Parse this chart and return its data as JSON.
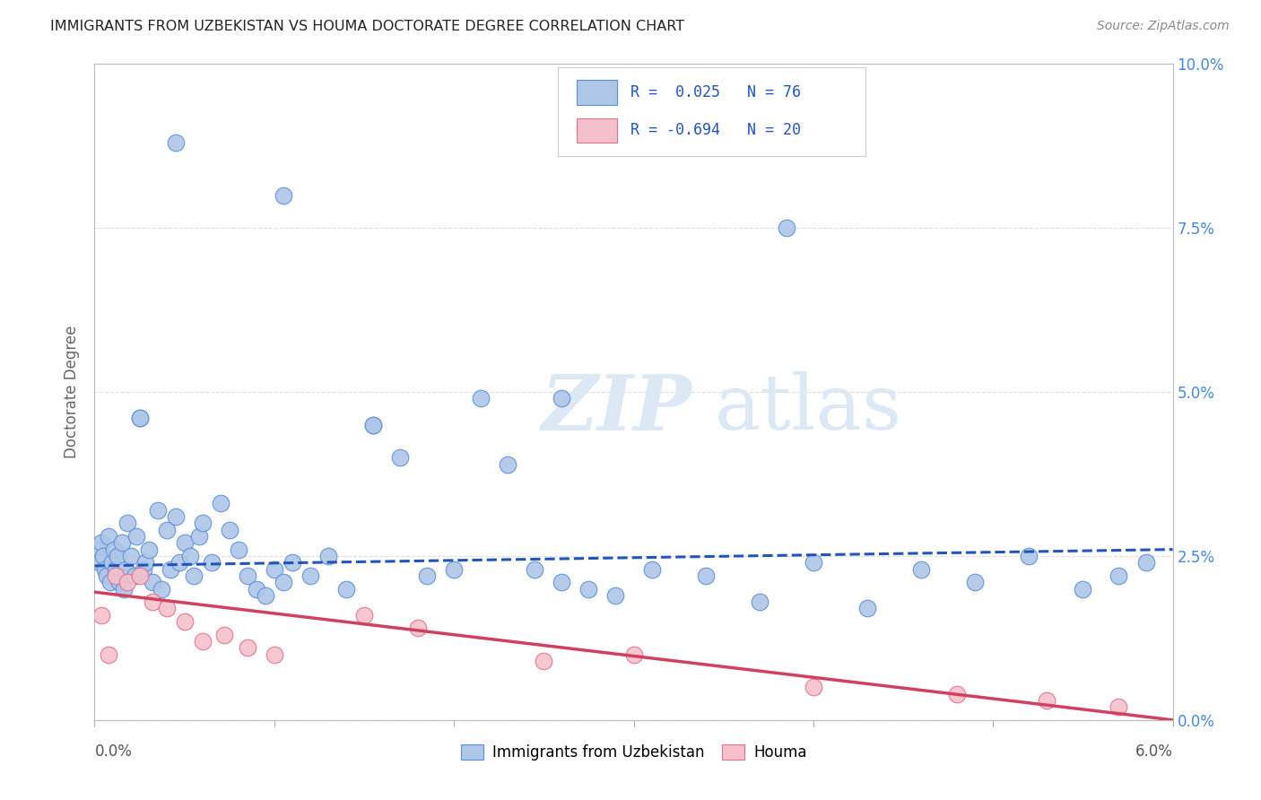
{
  "title": "IMMIGRANTS FROM UZBEKISTAN VS HOUMA DOCTORATE DEGREE CORRELATION CHART",
  "source": "Source: ZipAtlas.com",
  "ylabel": "Doctorate Degree",
  "xmin": 0.0,
  "xmax": 6.0,
  "ymin": 0.0,
  "ymax": 10.0,
  "blue_color": "#aec6e8",
  "blue_edge_color": "#5b8fd4",
  "blue_line_color": "#2255bb",
  "pink_color": "#f5c0cc",
  "pink_edge_color": "#e0708a",
  "pink_line_color": "#d04060",
  "legend_blue_label": "Immigrants from Uzbekistan",
  "legend_pink_label": "Houma",
  "blue_r": 0.025,
  "blue_n": 76,
  "pink_r": -0.694,
  "pink_n": 20,
  "blue_line_y_start": 2.35,
  "blue_line_y_end": 2.6,
  "pink_line_y_start": 1.95,
  "pink_line_y_end": 0.0,
  "ytick_vals": [
    0.0,
    2.5,
    5.0,
    7.5,
    10.0
  ],
  "xtick_vals": [
    0.0,
    1.0,
    2.0,
    3.0,
    4.0,
    5.0,
    6.0
  ],
  "watermark_zip": "ZIP",
  "watermark_atlas": "atlas",
  "background_color": "#ffffff",
  "grid_color": "#dddddd",
  "blue_scatter_x": [
    0.02,
    0.03,
    0.04,
    0.05,
    0.06,
    0.07,
    0.08,
    0.09,
    0.1,
    0.11,
    0.12,
    0.13,
    0.14,
    0.15,
    0.16,
    0.17,
    0.18,
    0.2,
    0.22,
    0.23,
    0.25,
    0.27,
    0.28,
    0.3,
    0.32,
    0.35,
    0.37,
    0.4,
    0.42,
    0.45,
    0.47,
    0.5,
    0.53,
    0.55,
    0.58,
    0.6,
    0.65,
    0.7,
    0.75,
    0.8,
    0.85,
    0.9,
    0.95,
    1.0,
    1.05,
    1.1,
    1.2,
    1.3,
    1.4,
    1.55,
    1.7,
    1.85,
    2.0,
    2.15,
    2.3,
    2.45,
    2.6,
    2.75,
    2.9,
    3.1,
    3.4,
    3.7,
    4.0,
    4.3,
    4.6,
    4.9,
    5.2,
    5.5,
    5.7,
    5.85,
    0.45,
    1.05,
    3.85,
    0.25,
    1.55,
    2.6
  ],
  "blue_scatter_y": [
    2.6,
    2.4,
    2.7,
    2.5,
    2.3,
    2.2,
    2.8,
    2.1,
    2.4,
    2.6,
    2.3,
    2.5,
    2.1,
    2.7,
    2.0,
    2.3,
    3.0,
    2.5,
    2.2,
    2.8,
    4.6,
    2.3,
    2.4,
    2.6,
    2.1,
    3.2,
    2.0,
    2.9,
    2.3,
    3.1,
    2.4,
    2.7,
    2.5,
    2.2,
    2.8,
    3.0,
    2.4,
    3.3,
    2.9,
    2.6,
    2.2,
    2.0,
    1.9,
    2.3,
    2.1,
    2.4,
    2.2,
    2.5,
    2.0,
    4.5,
    4.0,
    2.2,
    2.3,
    4.9,
    3.9,
    2.3,
    2.1,
    2.0,
    1.9,
    2.3,
    2.2,
    1.8,
    2.4,
    1.7,
    2.3,
    2.1,
    2.5,
    2.0,
    2.2,
    2.4,
    8.8,
    8.0,
    7.5,
    4.6,
    4.5,
    4.9
  ],
  "pink_scatter_x": [
    0.04,
    0.08,
    0.12,
    0.18,
    0.25,
    0.32,
    0.4,
    0.5,
    0.6,
    0.72,
    0.85,
    1.0,
    1.5,
    1.8,
    2.5,
    3.0,
    4.0,
    4.8,
    5.3,
    5.7
  ],
  "pink_scatter_y": [
    1.6,
    1.0,
    2.2,
    2.1,
    2.2,
    1.8,
    1.7,
    1.5,
    1.2,
    1.3,
    1.1,
    1.0,
    1.6,
    1.4,
    0.9,
    1.0,
    0.5,
    0.4,
    0.3,
    0.2
  ]
}
